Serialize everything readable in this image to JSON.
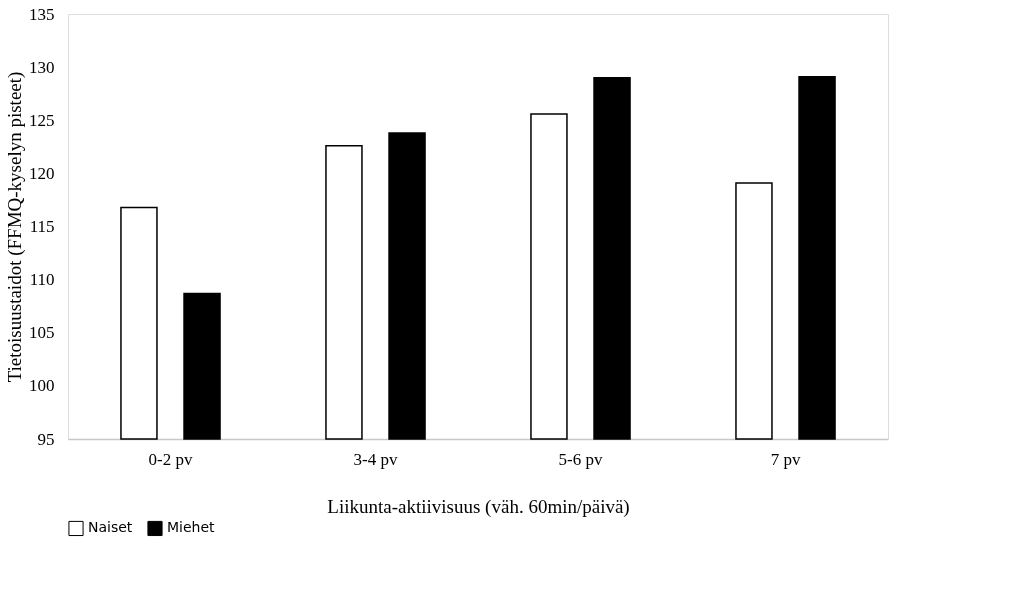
{
  "chart_data": {
    "type": "bar",
    "xlabel": "Liikunta-aktiivisuus (väh. 60min/päivä)",
    "ylabel": "Tietoisuustaidot (FFMQ-kyselyn pisteet)",
    "categories": [
      "0-2 pv",
      "3-4 pv",
      "5-6 pv",
      "7 pv"
    ],
    "series": [
      {
        "name": "Naiset",
        "color": "#ffffff",
        "values": [
          116.8,
          122.6,
          125.6,
          119.1
        ]
      },
      {
        "name": "Miehet",
        "color": "#000000",
        "values": [
          108.7,
          123.8,
          129.0,
          129.1
        ]
      }
    ],
    "ylim": [
      95,
      135
    ],
    "yticks": [
      95,
      100,
      105,
      110,
      115,
      120,
      125,
      130,
      135
    ],
    "grid": false,
    "legend": "bottom"
  }
}
